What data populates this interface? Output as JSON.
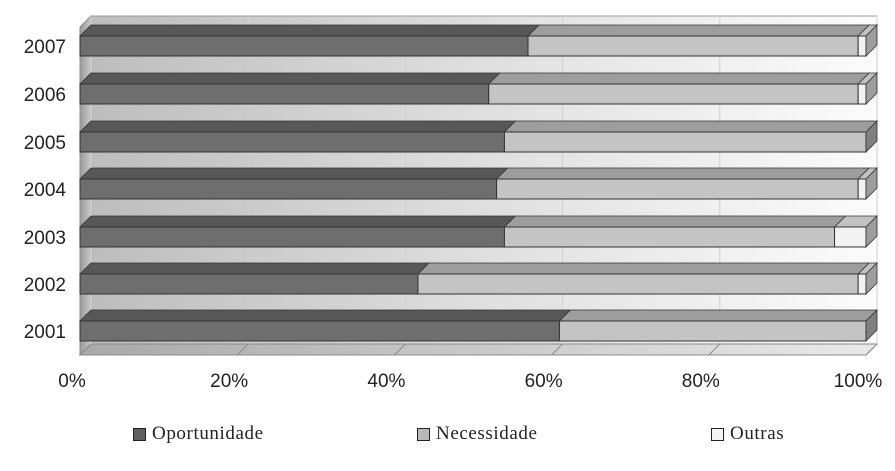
{
  "chart_data": {
    "type": "bar",
    "orientation": "horizontal",
    "stacked": "percent",
    "rendering": "3d",
    "categories": [
      "2001",
      "2002",
      "2003",
      "2004",
      "2005",
      "2006",
      "2007"
    ],
    "series": [
      {
        "name": "Oportunidade",
        "color": "#6e6e6e",
        "values": [
          61,
          43,
          54,
          53,
          54,
          52,
          57
        ]
      },
      {
        "name": "Necessidade",
        "color": "#c4c4c4",
        "values": [
          39,
          56,
          42,
          46,
          46,
          47,
          42
        ]
      },
      {
        "name": "Outras",
        "color": "#f2f2f2",
        "values": [
          0,
          1,
          4,
          1,
          0,
          1,
          1
        ]
      }
    ],
    "x_ticks": [
      "0%",
      "20%",
      "40%",
      "60%",
      "80%",
      "100%"
    ],
    "xlim": [
      0,
      100
    ],
    "grid": true,
    "legend_position": "bottom"
  }
}
